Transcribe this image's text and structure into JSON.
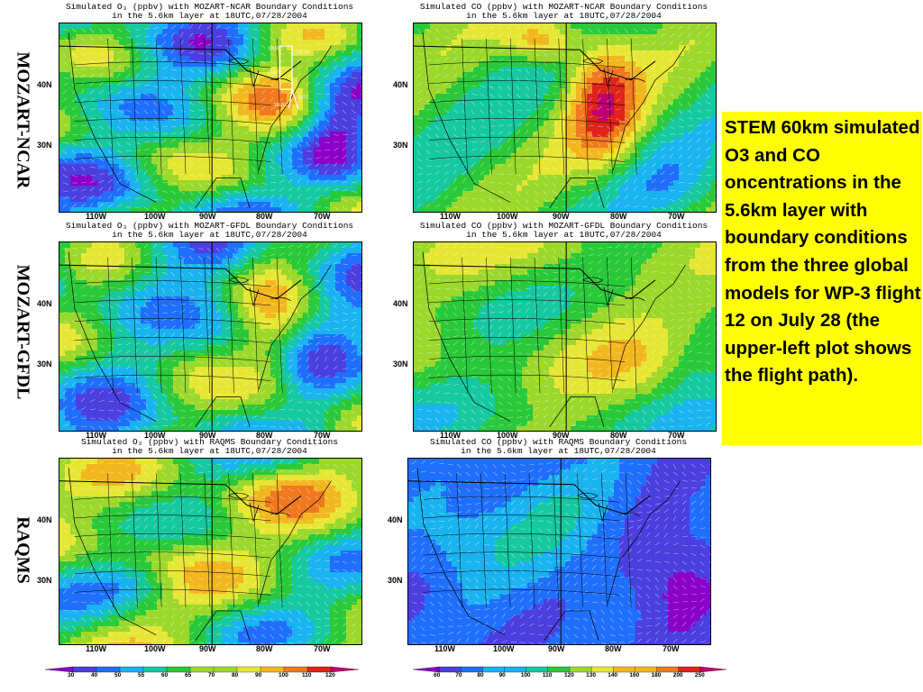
{
  "row_labels": [
    "MOZART-NCAR",
    "MOZART-GFDL",
    "RAQMS"
  ],
  "panels": [
    {
      "id": "o3-ncar",
      "title1": "Simulated O₃ (ppbv) with MOZART-NCAR Boundary Conditions",
      "title2": "in the 5.6km layer at 18UTC,07/28/2004",
      "species": "o3",
      "scheme": "ncar-o3",
      "flight_path": true
    },
    {
      "id": "co-ncar",
      "title1": "Simulated CO (ppbv) with MOZART-NCAR Boundary Conditions",
      "title2": "in the 5.6km layer at 18UTC,07/28/2004",
      "species": "co",
      "scheme": "ncar-co",
      "flight_path": false
    },
    {
      "id": "o3-gfdl",
      "title1": "Simulated O₃ (ppbv) with MOZART-GFDL Boundary Conditions",
      "title2": "in the 5.6km layer at 18UTC,07/28/2004",
      "species": "o3",
      "scheme": "gfdl-o3",
      "flight_path": false
    },
    {
      "id": "co-gfdl",
      "title1": "Simulated CO (ppbv) with MOZART-GFDL Boundary Conditions",
      "title2": "in the 5.6km layer at 18UTC,07/28/2004",
      "species": "co",
      "scheme": "gfdl-co",
      "flight_path": false
    },
    {
      "id": "o3-raqms",
      "title1": "Simulated O₃ (ppbv) with RAQMS Boundary Conditions",
      "title2": "in the 5.6km layer at 18UTC,07/28/2004",
      "species": "o3",
      "scheme": "raqms-o3",
      "flight_path": false
    },
    {
      "id": "co-raqms",
      "title1": "Simulated CO (ppbv) with RAQMS Boundary Conditions",
      "title2": "in the 5.6km layer at 18UTC,07/28/2004",
      "species": "co",
      "scheme": "raqms-co",
      "flight_path": false
    }
  ],
  "lat_labels": [
    "40N",
    "30N"
  ],
  "lon_labels": [
    "110W",
    "100W",
    "90W",
    "80W",
    "70W"
  ],
  "flight_path_labels": [
    "18UTC",
    "17UTC",
    "19UTC",
    "15UTC",
    "16UTC"
  ],
  "note": "STEM 60km simulated O3 and CO oncentrations in the 5.6km layer with boundary conditions from the three global models for WP-3 flight 12 on July 28 (the upper-left plot shows the flight path).",
  "colorbars": {
    "o3": {
      "ticks": [
        "30",
        "40",
        "50",
        "55",
        "60",
        "65",
        "70",
        "80",
        "90",
        "100",
        "110",
        "120"
      ]
    },
    "co": {
      "ticks": [
        "60",
        "70",
        "80",
        "90",
        "100",
        "110",
        "120",
        "130",
        "140",
        "160",
        "180",
        "200",
        "250"
      ]
    }
  },
  "palette": [
    "#8a00c8",
    "#4b3fe0",
    "#1f6fff",
    "#19b3f0",
    "#16c8a0",
    "#2ac93a",
    "#9bd82b",
    "#e6e634",
    "#f2b71e",
    "#f0781e",
    "#e0231a",
    "#c00070"
  ],
  "note_background": "#ffff00"
}
